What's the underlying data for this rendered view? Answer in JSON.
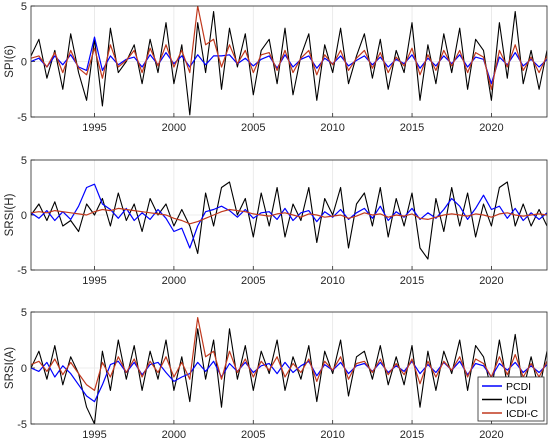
{
  "chart_data": {
    "type": "line",
    "x_range": [
      1991,
      2023.5
    ],
    "x_ticks": [
      "1995",
      "2000",
      "2005",
      "2010",
      "2015",
      "2020"
    ],
    "y_ticks": [
      "-5",
      "0",
      "5"
    ],
    "grid": true,
    "legend": {
      "placement": "bottom-right",
      "entries": [
        {
          "name": "PCDI",
          "color": "#0000ff"
        },
        {
          "name": "ICDI",
          "color": "#000000"
        },
        {
          "name": "ICDI-C",
          "color": "#c0391e"
        }
      ]
    },
    "panels": [
      {
        "ylabel": "SPI(6)",
        "ylim": [
          -5,
          5
        ],
        "x": [
          1991,
          1991.5,
          1992,
          1992.5,
          1993,
          1993.5,
          1994,
          1994.5,
          1995,
          1995.5,
          1996,
          1996.5,
          1997,
          1997.5,
          1998,
          1998.5,
          1999,
          1999.5,
          2000,
          2000.5,
          2001,
          2001.5,
          2002,
          2002.5,
          2003,
          2003.5,
          2004,
          2004.5,
          2005,
          2005.5,
          2006,
          2006.5,
          2007,
          2007.5,
          2008,
          2008.5,
          2009,
          2009.5,
          2010,
          2010.5,
          2011,
          2011.5,
          2012,
          2012.5,
          2013,
          2013.5,
          2014,
          2014.5,
          2015,
          2015.5,
          2016,
          2016.5,
          2017,
          2017.5,
          2018,
          2018.5,
          2019,
          2019.5,
          2020,
          2020.5,
          2021,
          2021.5,
          2022,
          2022.5,
          2023,
          2023.5
        ],
        "series": [
          {
            "name": "ICDI",
            "values": [
              0.5,
              2.0,
              -1.5,
              1.0,
              -2.5,
              2.5,
              -1.0,
              -3.5,
              2.0,
              -4.0,
              3.0,
              -1.0,
              0.0,
              1.5,
              -2.0,
              2.0,
              -1.0,
              3.5,
              -2.0,
              1.5,
              -4.8,
              3.5,
              -1.0,
              4.5,
              -2.5,
              3.0,
              -0.5,
              2.5,
              -3.0,
              1.0,
              2.0,
              -2.0,
              3.0,
              -3.0,
              0.5,
              2.5,
              -3.5,
              1.5,
              -1.0,
              3.0,
              -2.0,
              0.5,
              2.5,
              -1.5,
              2.0,
              -2.5,
              1.0,
              -1.0,
              3.5,
              -3.5,
              1.5,
              -2.0,
              2.5,
              -1.0,
              3.0,
              -2.5,
              2.0,
              1.0,
              -3.5,
              3.5,
              -1.5,
              4.5,
              -2.0,
              1.0,
              -2.5,
              1.0
            ]
          },
          {
            "name": "PCDI",
            "values": [
              0.0,
              0.3,
              -0.5,
              0.5,
              -0.3,
              0.6,
              -0.5,
              -0.8,
              2.2,
              -0.8,
              0.5,
              -0.3,
              0.2,
              0.4,
              -0.5,
              0.6,
              -0.3,
              0.8,
              -0.2,
              0.5,
              -0.5,
              0.6,
              -0.3,
              0.5,
              0.5,
              0.6,
              -0.2,
              0.3,
              -0.4,
              0.2,
              0.5,
              -0.6,
              0.6,
              -0.5,
              0.2,
              0.5,
              -0.6,
              0.3,
              -0.2,
              0.5,
              -0.4,
              0.1,
              0.5,
              -0.3,
              0.4,
              -0.5,
              0.2,
              -0.2,
              0.6,
              -0.6,
              0.3,
              -0.4,
              0.5,
              -0.2,
              0.6,
              -0.5,
              0.4,
              0.2,
              -2.0,
              0.4,
              -0.3,
              0.8,
              -0.4,
              0.2,
              -0.5,
              0.2
            ]
          },
          {
            "name": "ICDI-C",
            "values": [
              0.3,
              0.5,
              -0.5,
              0.8,
              -1.0,
              1.0,
              -0.6,
              -1.2,
              1.2,
              -1.5,
              1.5,
              -0.5,
              0.1,
              1.0,
              -1.0,
              1.2,
              -0.4,
              1.5,
              -0.5,
              1.0,
              -1.0,
              5.0,
              1.5,
              2.0,
              -0.5,
              1.5,
              -0.2,
              1.0,
              -1.0,
              0.6,
              0.8,
              -0.8,
              1.0,
              -1.0,
              0.3,
              1.0,
              -1.2,
              0.6,
              -0.3,
              1.0,
              -0.8,
              0.3,
              1.0,
              -0.6,
              0.8,
              -1.0,
              0.4,
              -0.4,
              1.2,
              -1.2,
              0.6,
              -0.8,
              1.0,
              -0.4,
              1.0,
              -1.0,
              0.8,
              0.4,
              -2.5,
              1.0,
              -0.5,
              1.5,
              -0.8,
              0.4,
              -1.0,
              0.5
            ]
          }
        ]
      },
      {
        "ylabel": "SRSI(H)",
        "ylim": [
          -5,
          5
        ],
        "x": [
          1991,
          1991.5,
          1992,
          1992.5,
          1993,
          1993.5,
          1994,
          1994.5,
          1995,
          1995.5,
          1996,
          1996.5,
          1997,
          1997.5,
          1998,
          1998.5,
          1999,
          1999.5,
          2000,
          2000.5,
          2001,
          2001.5,
          2002,
          2002.5,
          2003,
          2003.5,
          2004,
          2004.5,
          2005,
          2005.5,
          2006,
          2006.5,
          2007,
          2007.5,
          2008,
          2008.5,
          2009,
          2009.5,
          2010,
          2010.5,
          2011,
          2011.5,
          2012,
          2012.5,
          2013,
          2013.5,
          2014,
          2014.5,
          2015,
          2015.5,
          2016,
          2016.5,
          2017,
          2017.5,
          2018,
          2018.5,
          2019,
          2019.5,
          2020,
          2020.5,
          2021,
          2021.5,
          2022,
          2022.5,
          2023,
          2023.5
        ],
        "series": [
          {
            "name": "ICDI",
            "values": [
              0.0,
              1.0,
              -0.5,
              1.2,
              -1.0,
              -0.5,
              -1.5,
              1.0,
              0.0,
              1.5,
              -1.0,
              2.0,
              -0.5,
              1.0,
              -1.5,
              1.5,
              0.0,
              1.0,
              -1.0,
              0.5,
              -1.0,
              -3.5,
              2.0,
              -1.0,
              2.5,
              3.0,
              0.0,
              1.5,
              -2.0,
              2.0,
              -1.0,
              2.5,
              -2.0,
              1.0,
              -0.5,
              2.5,
              -2.5,
              1.5,
              0.0,
              2.5,
              -3.0,
              1.0,
              2.0,
              -1.0,
              2.5,
              -2.0,
              1.5,
              -1.0,
              2.0,
              -3.0,
              -4.0,
              1.5,
              -1.5,
              2.5,
              -1.0,
              2.0,
              -2.0,
              1.0,
              -1.0,
              2.5,
              3.0,
              -1.0,
              1.0,
              -1.0,
              0.5,
              -1.0
            ]
          },
          {
            "name": "PCDI",
            "values": [
              0.2,
              -0.3,
              0.4,
              -0.5,
              0.3,
              -0.4,
              0.8,
              2.5,
              2.8,
              1.0,
              0.5,
              -0.3,
              0.6,
              -0.5,
              0.2,
              -0.4,
              0.5,
              -0.3,
              -1.5,
              -1.2,
              -3.0,
              -1.0,
              0.3,
              0.5,
              0.8,
              0.4,
              -0.2,
              0.5,
              -0.3,
              0.2,
              0.3,
              -0.4,
              0.6,
              -0.5,
              0.2,
              0.4,
              -0.6,
              0.3,
              -0.2,
              0.5,
              -0.4,
              0.2,
              0.6,
              -0.3,
              0.8,
              -0.5,
              0.3,
              -0.2,
              0.6,
              -0.4,
              0.2,
              -0.3,
              0.5,
              1.5,
              0.8,
              -0.4,
              0.6,
              1.8,
              0.5,
              0.8,
              -0.3,
              0.6,
              -0.5,
              0.2,
              -0.4,
              0.2
            ]
          },
          {
            "name": "ICDI-C",
            "values": [
              0.2,
              0.3,
              0.2,
              0.4,
              0.3,
              0.2,
              0.1,
              0.0,
              0.3,
              0.5,
              0.4,
              0.6,
              0.5,
              0.4,
              0.3,
              0.2,
              0.1,
              0.0,
              -0.3,
              -0.5,
              -0.8,
              -0.6,
              -0.3,
              0.0,
              0.3,
              0.5,
              0.4,
              0.3,
              0.1,
              0.0,
              -0.1,
              0.1,
              0.2,
              0.0,
              -0.2,
              0.1,
              0.0,
              -0.2,
              -0.1,
              0.0,
              -0.3,
              -0.1,
              0.2,
              0.0,
              0.1,
              -0.2,
              0.0,
              -0.1,
              0.1,
              -0.3,
              -0.4,
              -0.2,
              0.0,
              0.1,
              0.0,
              -0.1,
              0.1,
              0.0,
              -0.2,
              0.1,
              0.2,
              0.0,
              -0.1,
              0.0,
              0.1,
              0.0
            ]
          }
        ]
      },
      {
        "ylabel": "SRSI(A)",
        "ylim": [
          -5,
          5
        ],
        "x": [
          1991,
          1991.5,
          1992,
          1992.5,
          1993,
          1993.5,
          1994,
          1994.5,
          1995,
          1995.5,
          1996,
          1996.5,
          1997,
          1997.5,
          1998,
          1998.5,
          1999,
          1999.5,
          2000,
          2000.5,
          2001,
          2001.5,
          2002,
          2002.5,
          2003,
          2003.5,
          2004,
          2004.5,
          2005,
          2005.5,
          2006,
          2006.5,
          2007,
          2007.5,
          2008,
          2008.5,
          2009,
          2009.5,
          2010,
          2010.5,
          2011,
          2011.5,
          2012,
          2012.5,
          2013,
          2013.5,
          2014,
          2014.5,
          2015,
          2015.5,
          2016,
          2016.5,
          2017,
          2017.5,
          2018,
          2018.5,
          2019,
          2019.5,
          2020,
          2020.5,
          2021,
          2021.5,
          2022,
          2022.5,
          2023,
          2023.5
        ],
        "series": [
          {
            "name": "ICDI",
            "values": [
              0.0,
              1.5,
              -1.0,
              2.0,
              -1.5,
              1.0,
              -0.5,
              -3.5,
              -5.0,
              1.5,
              -2.0,
              2.5,
              -1.0,
              2.0,
              -2.0,
              1.5,
              -1.0,
              2.5,
              -2.0,
              1.0,
              -3.0,
              3.5,
              -1.0,
              2.5,
              -3.5,
              3.5,
              -1.0,
              2.0,
              -2.0,
              1.5,
              -0.5,
              2.5,
              -2.0,
              1.0,
              -1.0,
              2.0,
              -3.0,
              1.5,
              -0.5,
              2.5,
              -2.5,
              1.0,
              1.5,
              -1.0,
              2.0,
              -1.5,
              1.0,
              -1.5,
              2.0,
              -3.5,
              1.5,
              -2.0,
              1.5,
              -0.5,
              2.5,
              -2.0,
              2.0,
              1.0,
              -2.0,
              2.5,
              -1.5,
              3.0,
              -2.0,
              1.0,
              -2.0,
              1.5
            ]
          },
          {
            "name": "PCDI",
            "values": [
              0.0,
              -0.3,
              0.5,
              -0.8,
              0.2,
              -0.5,
              -1.5,
              -2.5,
              -3.0,
              -1.5,
              0.3,
              0.6,
              -0.4,
              0.5,
              -0.6,
              0.3,
              0.5,
              -0.4,
              -1.2,
              -0.8,
              -0.5,
              0.5,
              -0.3,
              0.6,
              -0.8,
              0.4,
              -0.3,
              0.5,
              -0.4,
              0.2,
              0.4,
              -0.5,
              0.5,
              -0.4,
              0.2,
              0.6,
              -0.7,
              0.3,
              -0.2,
              0.5,
              -0.5,
              0.2,
              0.4,
              -0.3,
              0.5,
              -0.4,
              0.2,
              -0.3,
              0.6,
              -0.5,
              0.3,
              -0.4,
              0.5,
              -0.2,
              0.6,
              -0.6,
              0.4,
              0.2,
              -0.8,
              0.4,
              -0.2,
              0.5,
              -0.4,
              0.2,
              -0.4,
              0.3
            ]
          },
          {
            "name": "ICDI-C",
            "values": [
              0.3,
              0.6,
              -0.3,
              0.8,
              -0.6,
              0.5,
              -0.5,
              -1.5,
              -2.0,
              0.5,
              -0.8,
              1.0,
              -0.4,
              0.8,
              -0.8,
              0.6,
              -0.4,
              1.0,
              -0.8,
              0.5,
              -1.0,
              4.5,
              1.0,
              1.5,
              -1.0,
              1.5,
              -0.4,
              0.8,
              -0.8,
              0.6,
              -0.2,
              1.0,
              -0.8,
              0.4,
              -0.4,
              0.8,
              -1.2,
              0.6,
              -0.2,
              1.0,
              -1.0,
              0.4,
              0.6,
              -0.4,
              0.8,
              -0.6,
              0.4,
              -0.6,
              0.8,
              -1.4,
              0.6,
              -0.8,
              0.6,
              -0.2,
              1.0,
              -0.8,
              0.8,
              0.4,
              -0.8,
              1.0,
              -0.6,
              1.2,
              -0.8,
              0.4,
              -0.8,
              0.6
            ]
          }
        ]
      }
    ]
  }
}
